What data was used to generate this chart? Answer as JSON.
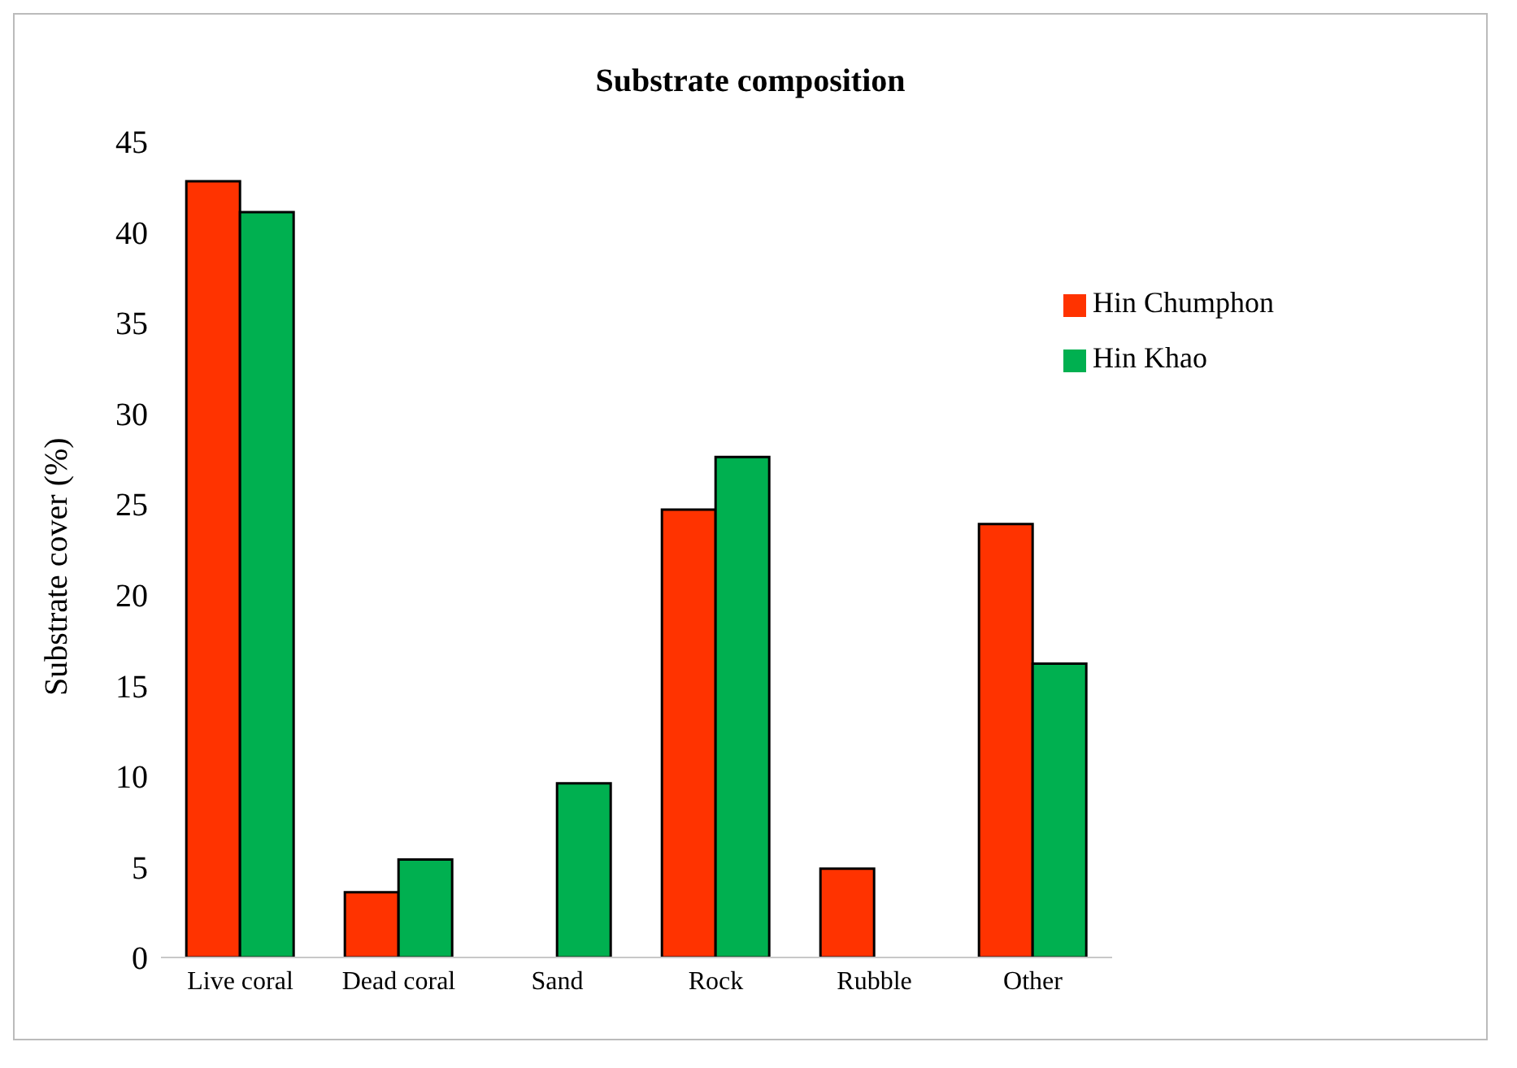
{
  "chart_data": {
    "type": "bar",
    "title": "Substrate composition",
    "ylabel": "Substrate cover (%)",
    "categories": [
      "Live coral",
      "Dead coral",
      "Sand",
      "Rock",
      "Rubble",
      "Other"
    ],
    "series": [
      {
        "name": "Hin Chumphon",
        "color": "#ff3300",
        "values": [
          42.8,
          3.6,
          0,
          24.7,
          4.9,
          23.9
        ]
      },
      {
        "name": "Hin Khao",
        "color": "#00b050",
        "values": [
          41.1,
          5.4,
          9.6,
          27.6,
          0,
          16.2
        ]
      }
    ],
    "ylim": [
      0,
      45
    ],
    "yticks": [
      0,
      5,
      10,
      15,
      20,
      25,
      30,
      35,
      40,
      45
    ],
    "grid": false,
    "legend": "top right"
  }
}
